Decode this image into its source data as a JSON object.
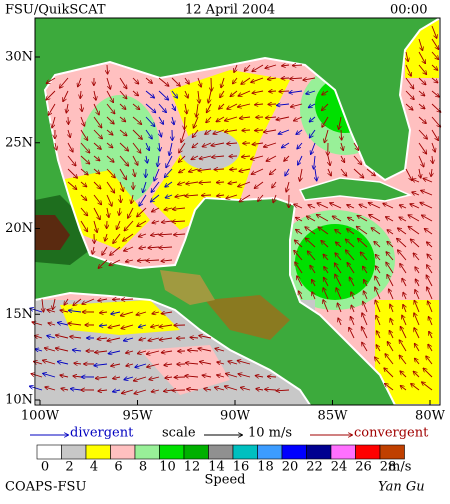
{
  "header": {
    "title": "FSU/QuikSCAT",
    "date": "12 April 2004",
    "time": "00:00"
  },
  "map": {
    "lat_ticks": [
      {
        "value": 30,
        "label": "30N"
      },
      {
        "value": 25,
        "label": "25N"
      },
      {
        "value": 20,
        "label": "20N"
      },
      {
        "value": 15,
        "label": "15N"
      },
      {
        "value": 10,
        "label": "10N"
      }
    ],
    "lon_ticks": [
      {
        "value": -100,
        "label": "100W"
      },
      {
        "value": -95,
        "label": "95W"
      },
      {
        "value": -90,
        "label": "90W"
      },
      {
        "value": -85,
        "label": "85W"
      },
      {
        "value": -80,
        "label": "80W"
      }
    ]
  },
  "legend": {
    "divergent": "divergent",
    "scale": "scale",
    "scale_value": "10 m/s",
    "convergent": "convergent"
  },
  "colorbar": {
    "ticks": [
      0,
      2,
      4,
      6,
      8,
      10,
      12,
      14,
      16,
      18,
      20,
      22,
      24,
      26,
      28
    ],
    "colors": [
      "#ffffff",
      "#c8c8c8",
      "#ffff00",
      "#ffc0c0",
      "#98f098",
      "#00e000",
      "#00b000",
      "#909090",
      "#00c0c0",
      "#3c9cff",
      "#0000ff",
      "#000090",
      "#ff70ff",
      "#ff0000",
      "#c04000"
    ],
    "unit": "m/s",
    "label": "Speed"
  },
  "footer": {
    "credit": "COAPS-FSU",
    "author": "Yan Gu"
  }
}
